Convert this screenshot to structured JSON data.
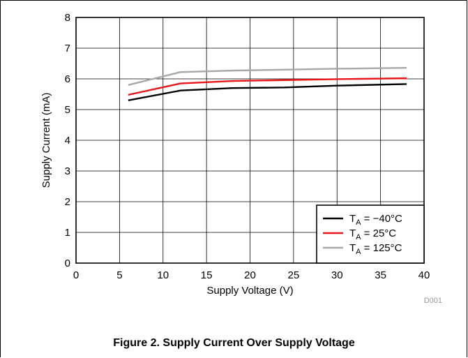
{
  "chart_data": {
    "type": "line",
    "xlabel": "Supply Voltage (V)",
    "ylabel": "Supply Current (mA)",
    "xlim": [
      0,
      40
    ],
    "ylim": [
      0,
      8
    ],
    "xticks": [
      "0",
      "5",
      "10",
      "15",
      "20",
      "25",
      "30",
      "35",
      "40"
    ],
    "yticks": [
      "0",
      "1",
      "2",
      "3",
      "4",
      "5",
      "6",
      "7",
      "8"
    ],
    "grid": true,
    "legend_position": "bottom-right",
    "x": [
      6,
      12,
      18,
      24,
      30,
      38
    ],
    "series": [
      {
        "name_prefix": "T",
        "name_sub": "A",
        "name_suffix": " = −40°C",
        "color": "#000000",
        "values": [
          5.3,
          5.62,
          5.7,
          5.72,
          5.78,
          5.83
        ]
      },
      {
        "name_prefix": "T",
        "name_sub": "A",
        "name_suffix": " = 25°C",
        "color": "#e8161b",
        "values": [
          5.48,
          5.85,
          5.93,
          5.96,
          5.99,
          6.02
        ]
      },
      {
        "name_prefix": "T",
        "name_sub": "A",
        "name_suffix": " = 125°C",
        "color": "#a8a8a8",
        "values": [
          5.8,
          6.22,
          6.27,
          6.3,
          6.33,
          6.36
        ]
      }
    ],
    "code": "D001"
  },
  "caption": "Figure 2. Supply Current Over Supply Voltage"
}
